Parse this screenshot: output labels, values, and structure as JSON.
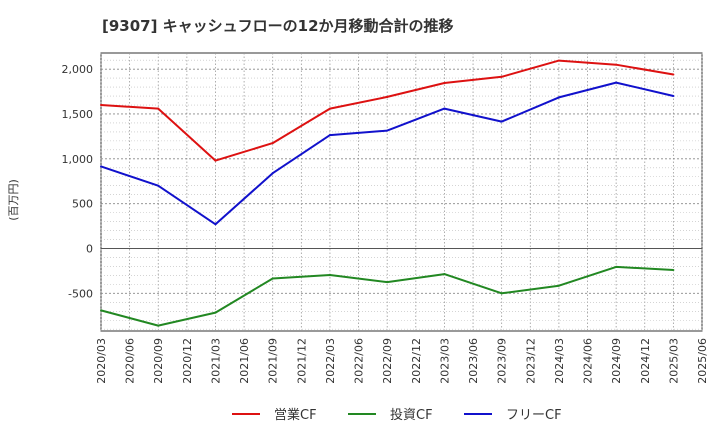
{
  "chart_data": {
    "type": "line",
    "title": "[9307]  キャッシュフローの12か月移動合計の推移",
    "ylabel": "(百万円)",
    "xlabel": "",
    "ylim": [
      -920,
      2180
    ],
    "yticks": [
      2000,
      1500,
      1000,
      500,
      0,
      -500
    ],
    "ytick_labels": [
      "2,000",
      "1,500",
      "1,000",
      "500",
      "0",
      "-500"
    ],
    "x_categories": [
      "2020/03",
      "2020/06",
      "2020/09",
      "2020/12",
      "2021/03",
      "2021/06",
      "2021/09",
      "2021/12",
      "2022/03",
      "2022/06",
      "2022/09",
      "2022/12",
      "2023/03",
      "2023/06",
      "2023/09",
      "2023/12",
      "2024/03",
      "2024/06",
      "2024/09",
      "2024/12",
      "2025/03",
      "2025/06"
    ],
    "grid": true,
    "legend_position": "bottom",
    "series": [
      {
        "name": "営業CF",
        "color": "#dd1111",
        "points": [
          {
            "x": "2020/03",
            "y": 1600
          },
          {
            "x": "2020/09",
            "y": 1560
          },
          {
            "x": "2021/03",
            "y": 980
          },
          {
            "x": "2021/09",
            "y": 1175
          },
          {
            "x": "2022/03",
            "y": 1560
          },
          {
            "x": "2022/09",
            "y": 1690
          },
          {
            "x": "2023/03",
            "y": 1845
          },
          {
            "x": "2023/09",
            "y": 1915
          },
          {
            "x": "2024/03",
            "y": 2095
          },
          {
            "x": "2024/09",
            "y": 2050
          },
          {
            "x": "2025/03",
            "y": 1940
          }
        ]
      },
      {
        "name": "投資CF",
        "color": "#228822",
        "points": [
          {
            "x": "2020/03",
            "y": -690
          },
          {
            "x": "2020/09",
            "y": -860
          },
          {
            "x": "2021/03",
            "y": -715
          },
          {
            "x": "2021/09",
            "y": -335
          },
          {
            "x": "2022/03",
            "y": -295
          },
          {
            "x": "2022/09",
            "y": -375
          },
          {
            "x": "2023/03",
            "y": -285
          },
          {
            "x": "2023/09",
            "y": -500
          },
          {
            "x": "2024/03",
            "y": -415
          },
          {
            "x": "2024/09",
            "y": -205
          },
          {
            "x": "2025/03",
            "y": -240
          }
        ]
      },
      {
        "name": "フリーCF",
        "color": "#1111cc",
        "points": [
          {
            "x": "2020/03",
            "y": 915
          },
          {
            "x": "2020/09",
            "y": 700
          },
          {
            "x": "2021/03",
            "y": 270
          },
          {
            "x": "2021/09",
            "y": 840
          },
          {
            "x": "2022/03",
            "y": 1265
          },
          {
            "x": "2022/09",
            "y": 1315
          },
          {
            "x": "2023/03",
            "y": 1560
          },
          {
            "x": "2023/09",
            "y": 1415
          },
          {
            "x": "2024/03",
            "y": 1685
          },
          {
            "x": "2024/09",
            "y": 1850
          },
          {
            "x": "2025/03",
            "y": 1700
          }
        ]
      }
    ]
  }
}
